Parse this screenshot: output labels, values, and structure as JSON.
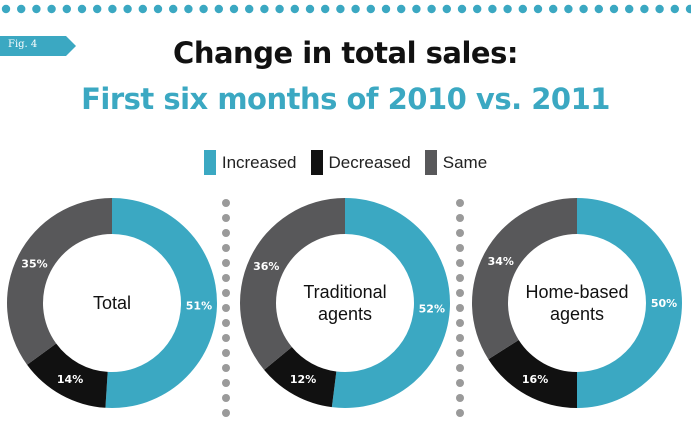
{
  "figure_tag": "Fig. 4",
  "title_line1": "Change in total sales:",
  "title_line2": "First six months of 2010 vs. 2011",
  "colors": {
    "accent": "#3ba8c2",
    "increased": "#3ba8c2",
    "decreased": "#111111",
    "same": "#58585a",
    "dots": "#9a9a9a"
  },
  "legend": [
    {
      "label": "Increased",
      "color": "#3ba8c2"
    },
    {
      "label": "Decreased",
      "color": "#111111"
    },
    {
      "label": "Same",
      "color": "#58585a"
    }
  ],
  "chart_data": [
    {
      "type": "pie",
      "title": "Total",
      "slices": [
        {
          "name": "Increased",
          "value": 51,
          "label": "51%"
        },
        {
          "name": "Decreased",
          "value": 14,
          "label": "14%"
        },
        {
          "name": "Same",
          "value": 35,
          "label": "35%"
        }
      ]
    },
    {
      "type": "pie",
      "title": "Traditional agents",
      "slices": [
        {
          "name": "Increased",
          "value": 52,
          "label": "52%"
        },
        {
          "name": "Decreased",
          "value": 12,
          "label": "12%"
        },
        {
          "name": "Same",
          "value": 36,
          "label": "36%"
        }
      ]
    },
    {
      "type": "pie",
      "title": "Home-based agents",
      "slices": [
        {
          "name": "Increased",
          "value": 50,
          "label": "50%"
        },
        {
          "name": "Decreased",
          "value": 16,
          "label": "16%"
        },
        {
          "name": "Same",
          "value": 34,
          "label": "34%"
        }
      ]
    }
  ]
}
